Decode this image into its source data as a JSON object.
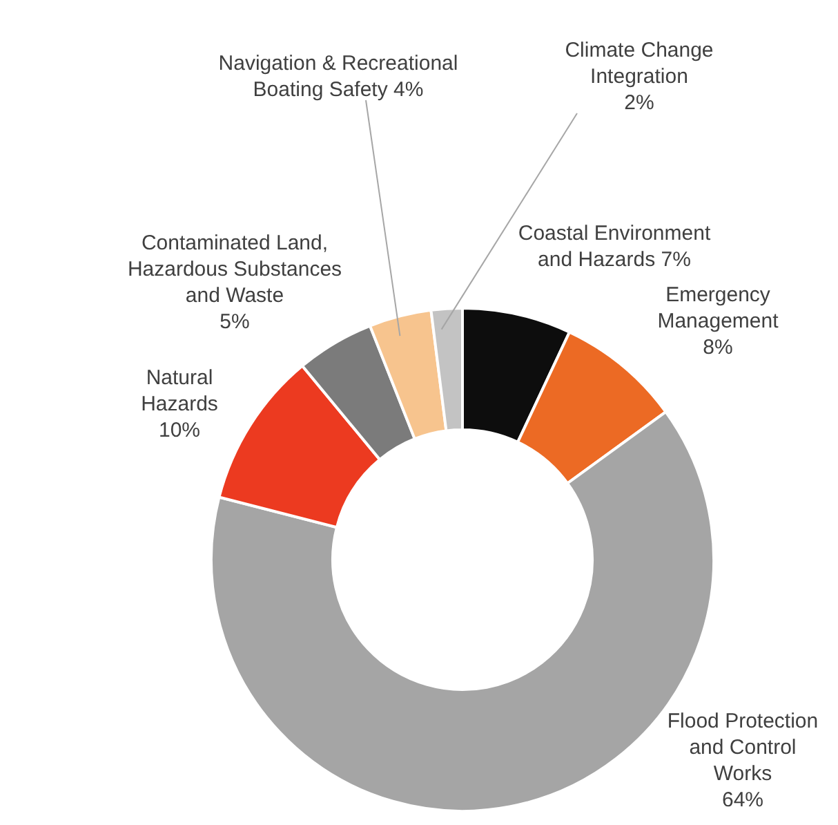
{
  "chart_data": {
    "type": "donut",
    "categories": [
      "Coastal Environment and Hazards",
      "Emergency Management",
      "Flood Protection and Control Works",
      "Natural Hazards",
      "Contaminated Land, Hazardous Substances and Waste",
      "Navigation & Recreational Boating Safety",
      "Climate Change Integration"
    ],
    "values": [
      7,
      8,
      64,
      10,
      5,
      4,
      2
    ],
    "value_labels": [
      "7%",
      "8%",
      "64%",
      "10%",
      "5%",
      "4%",
      "2%"
    ],
    "colors": [
      "#0d0d0d",
      "#ec6a24",
      "#a5a5a5",
      "#ec3a20",
      "#7b7b7b",
      "#f7c48e",
      "#c3c3c3"
    ],
    "legend": false
  }
}
